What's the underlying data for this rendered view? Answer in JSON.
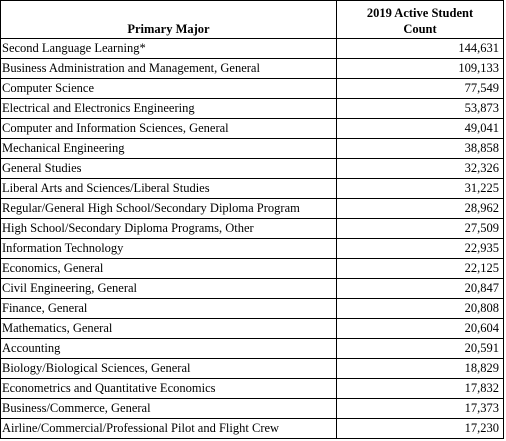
{
  "table": {
    "headers": {
      "major": "Primary Major",
      "count": "2019 Active Student Count"
    },
    "rows": [
      {
        "major": "Second Language Learning*",
        "count": "144,631"
      },
      {
        "major": "Business Administration and Management, General",
        "count": "109,133"
      },
      {
        "major": "Computer Science",
        "count": "77,549"
      },
      {
        "major": "Electrical and Electronics Engineering",
        "count": "53,873"
      },
      {
        "major": "Computer and Information Sciences, General",
        "count": "49,041"
      },
      {
        "major": "Mechanical Engineering",
        "count": "38,858"
      },
      {
        "major": "General Studies",
        "count": "32,326"
      },
      {
        "major": "Liberal Arts and Sciences/Liberal Studies",
        "count": "31,225"
      },
      {
        "major": "Regular/General High School/Secondary Diploma Program",
        "count": "28,962"
      },
      {
        "major": "High School/Secondary Diploma Programs, Other",
        "count": "27,509"
      },
      {
        "major": "Information Technology",
        "count": "22,935"
      },
      {
        "major": "Economics, General",
        "count": "22,125"
      },
      {
        "major": "Civil Engineering, General",
        "count": "20,847"
      },
      {
        "major": "Finance, General",
        "count": "20,808"
      },
      {
        "major": "Mathematics, General",
        "count": "20,604"
      },
      {
        "major": "Accounting",
        "count": "20,591"
      },
      {
        "major": "Biology/Biological Sciences, General",
        "count": "18,829"
      },
      {
        "major": "Econometrics and Quantitative Economics",
        "count": "17,832"
      },
      {
        "major": "Business/Commerce, General",
        "count": "17,373"
      },
      {
        "major": "Airline/Commercial/Professional Pilot and Flight Crew",
        "count": "17,230"
      }
    ]
  }
}
